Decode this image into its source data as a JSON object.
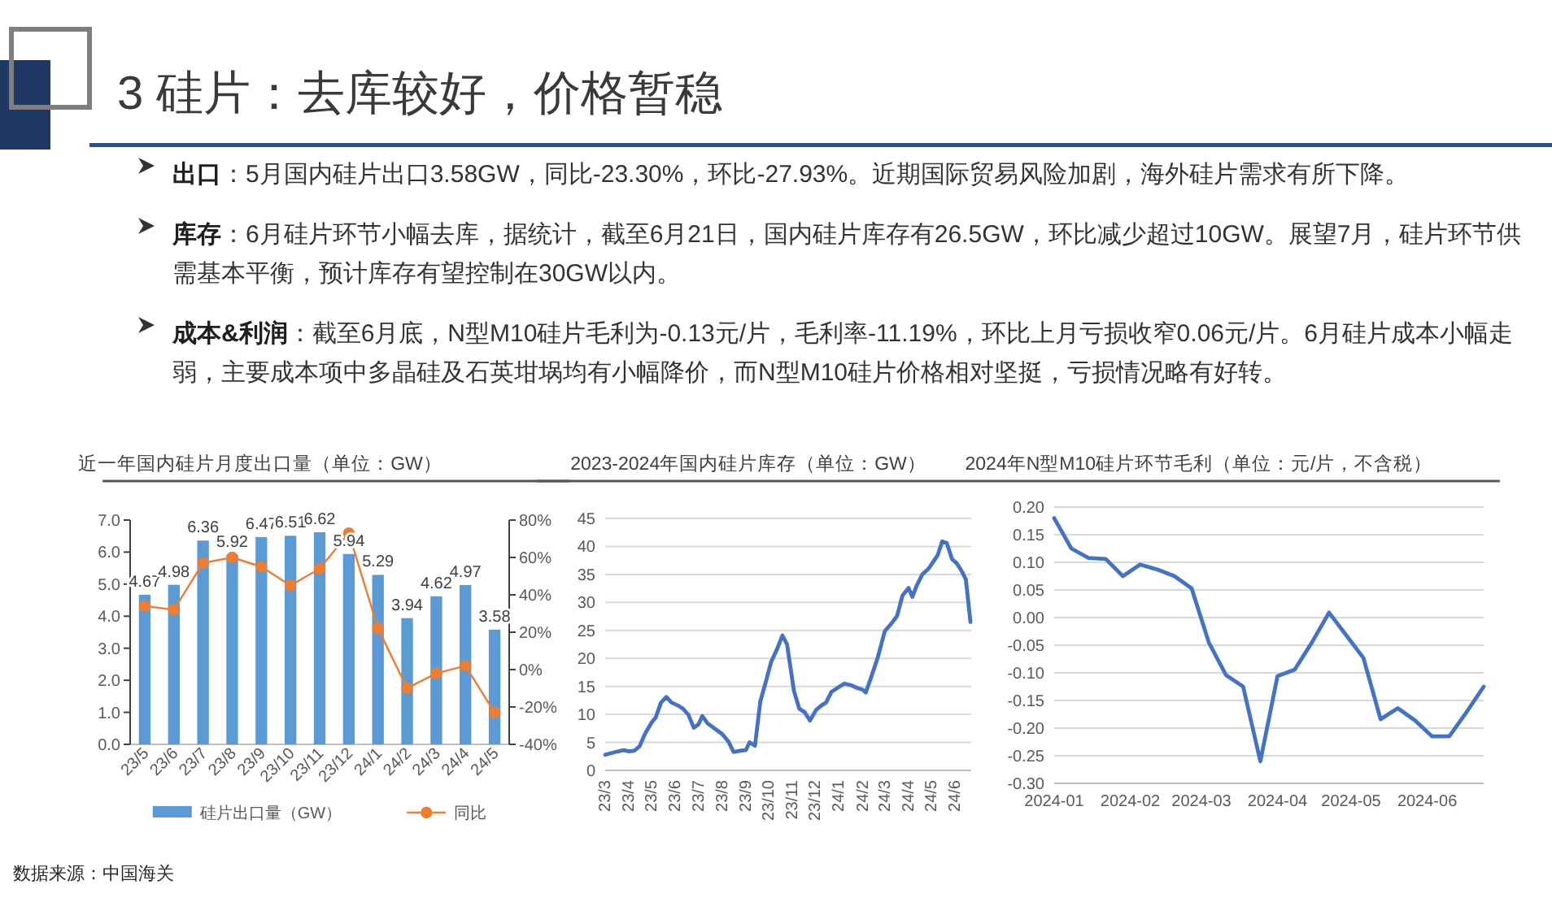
{
  "chart_data": [
    {
      "type": "other",
      "title": "3 硅片：去库较好，价格暂稳",
      "annotations": [
        "**出口**：5月国内硅片出口3.58GW，同比-23.30%，环比-27.93%。近期国际贸易风险加剧，海外硅片需求有所下降。",
        "**库存**：6月硅片环节小幅去库，据统计，截至6月21日，国内硅片库存有26.5GW，环比减少超过10GW。展望7月，硅片环节供需基本平衡，预计库存有望控制在30GW以内。",
        "**成本&利润**：截至6月底，N型M10硅片毛利为-0.13元/片，毛利率-11.19%，环比上月亏损收窄0.06元/片。6月硅片成本小幅走弱，主要成本项中多晶硅及石英坩埚均有小幅降价，而N型M10硅片价格相对坚挺，亏损情况略有好转。"
      ]
    },
    {
      "type": "bar",
      "title": "近一年国内硅片月度出口量（单位：GW）",
      "categories": [
        "23/5",
        "23/6",
        "23/7",
        "23/8",
        "23/9",
        "23/10",
        "23/11",
        "23/12",
        "24/1",
        "24/2",
        "24/3",
        "24/4",
        "24/5"
      ],
      "series": [
        {
          "name": "硅片出口量（GW）",
          "color": "#5b9bd5",
          "values": [
            4.67,
            4.98,
            6.36,
            5.92,
            6.47,
            6.51,
            6.62,
            5.94,
            5.29,
            3.94,
            4.62,
            4.97,
            3.58
          ],
          "value_labels": [
            "4.67",
            "4.98",
            "6.36",
            "5.92",
            "6.47",
            "6.51",
            "6.62",
            "5.94",
            "5.29",
            "3.94",
            "4.62",
            "4.97",
            "3.58"
          ]
        },
        {
          "name": "同比",
          "type": "line",
          "axis": "y2",
          "color": "#ed7d31",
          "values": [
            34,
            32,
            57,
            60,
            55,
            45,
            54,
            73,
            22,
            -10,
            -2,
            2,
            -23
          ]
        }
      ],
      "ylim": [
        0,
        7
      ],
      "yticks": [
        {
          "value": 0,
          "label": "0.0"
        },
        {
          "value": 1,
          "label": "1.0"
        },
        {
          "value": 2,
          "label": "2.0"
        },
        {
          "value": 3,
          "label": "3.0"
        },
        {
          "value": 4,
          "label": "4.0"
        },
        {
          "value": 5,
          "label": "5.0"
        },
        {
          "value": 6,
          "label": "6.0"
        },
        {
          "value": 7,
          "label": "7.0"
        }
      ],
      "y2lim": [
        -40,
        80
      ],
      "y2ticks": [
        {
          "value": -40,
          "label": "-40%"
        },
        {
          "value": -20,
          "label": "-20%"
        },
        {
          "value": 0,
          "label": "0%"
        },
        {
          "value": 20,
          "label": "20%"
        },
        {
          "value": 40,
          "label": "40%"
        },
        {
          "value": 60,
          "label": "60%"
        },
        {
          "value": 80,
          "label": "80%"
        }
      ],
      "marker": "circle",
      "legend": "bottom",
      "annotations": [
        "数据来源：中国海关"
      ]
    },
    {
      "type": "line",
      "title": "2023-2024年国内硅片库存（单位：GW）",
      "series": [
        {
          "color": "#4472c4",
          "x": [
            "2023-03-01",
            "2023-03-15",
            "2023-03-25",
            "2023-04-01",
            "2023-04-08",
            "2023-04-15",
            "2023-04-22",
            "2023-05-01",
            "2023-05-06",
            "2023-05-13",
            "2023-05-20",
            "2023-05-27",
            "2023-06-04",
            "2023-06-11",
            "2023-06-18",
            "2023-06-25",
            "2023-07-01",
            "2023-07-06",
            "2023-07-13",
            "2023-07-21",
            "2023-08-01",
            "2023-08-09",
            "2023-08-16",
            "2023-08-25",
            "2023-09-01",
            "2023-09-06",
            "2023-09-13",
            "2023-09-20",
            "2023-09-27",
            "2023-10-04",
            "2023-10-12",
            "2023-10-19",
            "2023-10-25",
            "2023-11-03",
            "2023-11-10",
            "2023-11-17",
            "2023-11-24",
            "2023-12-02",
            "2023-12-09",
            "2023-12-15",
            "2023-12-22",
            "2024-01-01",
            "2024-01-08",
            "2024-01-17",
            "2024-01-25",
            "2024-02-01",
            "2024-02-05",
            "2024-02-12",
            "2024-02-21",
            "2024-03-01",
            "2024-03-10",
            "2024-03-17",
            "2024-03-24",
            "2024-04-01",
            "2024-04-06",
            "2024-04-12",
            "2024-04-19",
            "2024-04-27",
            "2024-05-02",
            "2024-05-09",
            "2024-05-15",
            "2024-05-21",
            "2024-05-28",
            "2024-06-03",
            "2024-06-10",
            "2024-06-15",
            "2024-06-21"
          ],
          "values": [
            2.8,
            3.3,
            3.6,
            3.4,
            3.5,
            4.3,
            6.5,
            8.6,
            9.4,
            12.1,
            13.1,
            12.1,
            11.6,
            11.0,
            9.9,
            7.6,
            8.2,
            9.7,
            8.4,
            7.6,
            6.5,
            5.2,
            3.3,
            3.5,
            3.6,
            5.0,
            4.4,
            12.3,
            15.7,
            19.3,
            21.7,
            24.1,
            22.5,
            14.2,
            11.0,
            10.4,
            8.9,
            10.8,
            11.6,
            12.1,
            14.0,
            14.9,
            15.5,
            15.2,
            14.7,
            14.4,
            13.9,
            16.6,
            20.3,
            24.9,
            26.3,
            27.6,
            31.2,
            32.6,
            31.0,
            33.1,
            35.0,
            36.0,
            37.0,
            38.4,
            40.9,
            40.6,
            37.7,
            37.0,
            35.5,
            34.1,
            26.5
          ]
        }
      ],
      "xlim": [
        "2023-03-01",
        "2024-06-22"
      ],
      "xticks": [
        {
          "value": "2023-03-01",
          "label": "23/3"
        },
        {
          "value": "2023-04-01",
          "label": "23/4"
        },
        {
          "value": "2023-05-01",
          "label": "23/5"
        },
        {
          "value": "2023-06-01",
          "label": "23/6"
        },
        {
          "value": "2023-07-01",
          "label": "23/7"
        },
        {
          "value": "2023-08-01",
          "label": "23/8"
        },
        {
          "value": "2023-09-01",
          "label": "23/9"
        },
        {
          "value": "2023-10-01",
          "label": "23/10"
        },
        {
          "value": "2023-11-01",
          "label": "23/11"
        },
        {
          "value": "2023-12-01",
          "label": "23/12"
        },
        {
          "value": "2024-01-01",
          "label": "24/1"
        },
        {
          "value": "2024-02-01",
          "label": "24/2"
        },
        {
          "value": "2024-03-01",
          "label": "24/3"
        },
        {
          "value": "2024-04-01",
          "label": "24/4"
        },
        {
          "value": "2024-05-01",
          "label": "24/5"
        },
        {
          "value": "2024-06-01",
          "label": "24/6"
        }
      ],
      "ylim": [
        0,
        45
      ],
      "yticks": [
        0,
        5,
        10,
        15,
        20,
        25,
        30,
        35,
        40,
        45
      ],
      "grid": "y"
    },
    {
      "type": "line",
      "title": "2024年N型M10硅片环节毛利（单位：元/片，不含税）",
      "series": [
        {
          "color": "#4472c4",
          "x": [
            "2024-01-01",
            "2024-01-08",
            "2024-01-15",
            "2024-01-22",
            "2024-01-29",
            "2024-02-05",
            "2024-02-12",
            "2024-02-19",
            "2024-02-26",
            "2024-03-04",
            "2024-03-11",
            "2024-03-18",
            "2024-03-25",
            "2024-04-01",
            "2024-04-08",
            "2024-04-15",
            "2024-04-22",
            "2024-04-29",
            "2024-05-06",
            "2024-05-13",
            "2024-05-20",
            "2024-05-27",
            "2024-06-03",
            "2024-06-10",
            "2024-06-17",
            "2024-06-24"
          ],
          "values": [
            0.18,
            0.125,
            0.108,
            0.106,
            0.075,
            0.096,
            0.087,
            0.075,
            0.053,
            -0.045,
            -0.104,
            -0.125,
            -0.26,
            -0.106,
            -0.094,
            -0.045,
            0.009,
            -0.032,
            -0.073,
            -0.184,
            -0.164,
            -0.186,
            -0.215,
            -0.215,
            -0.171,
            -0.125
          ]
        }
      ],
      "xlim": [
        "2024-01-01",
        "2024-06-24"
      ],
      "xticks": [
        {
          "value": "2024-01-01",
          "label": "2024-01"
        },
        {
          "value": "2024-02-01",
          "label": "2024-02"
        },
        {
          "value": "2024-03-01",
          "label": "2024-03"
        },
        {
          "value": "2024-04-01",
          "label": "2024-04"
        },
        {
          "value": "2024-05-01",
          "label": "2024-05"
        },
        {
          "value": "2024-06-01",
          "label": "2024-06"
        }
      ],
      "ylim": [
        -0.3,
        0.2
      ],
      "yticks": [
        {
          "value": -0.3,
          "label": "-0.30"
        },
        {
          "value": -0.25,
          "label": "-0.25"
        },
        {
          "value": -0.2,
          "label": "-0.20"
        },
        {
          "value": -0.15,
          "label": "-0.15"
        },
        {
          "value": -0.1,
          "label": "-0.10"
        },
        {
          "value": -0.05,
          "label": "-0.05"
        },
        {
          "value": 0,
          "label": "0.00"
        },
        {
          "value": 0.05,
          "label": "0.05"
        },
        {
          "value": 0.1,
          "label": "0.10"
        },
        {
          "value": 0.15,
          "label": "0.15"
        },
        {
          "value": 0.2,
          "label": "0.20"
        }
      ],
      "grid": "y"
    }
  ]
}
